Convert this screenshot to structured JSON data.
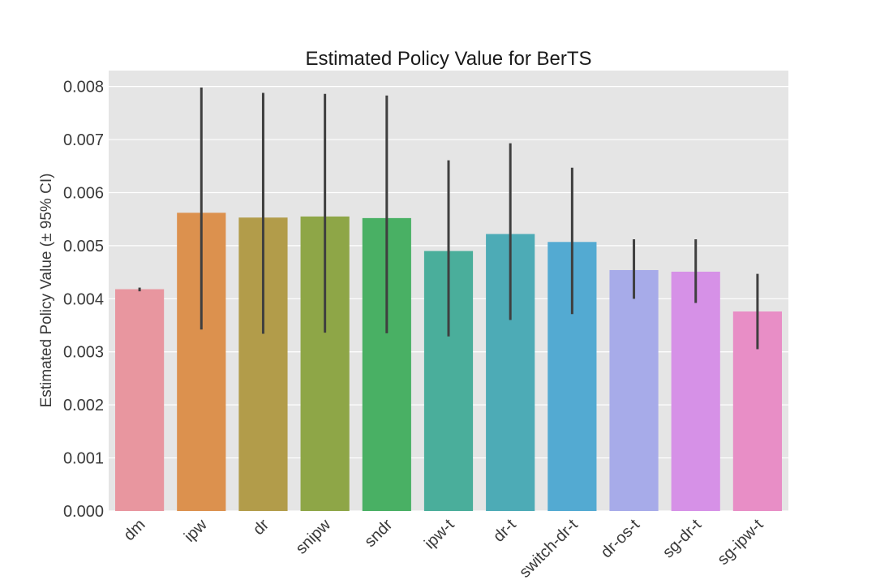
{
  "chart_data": {
    "type": "bar",
    "title": "Estimated Policy Value for BerTS",
    "xlabel": "",
    "ylabel": "Estimated Policy Value (± 95% CI)",
    "ylim": [
      0,
      0.0083
    ],
    "yticks": [
      "0.000",
      "0.001",
      "0.002",
      "0.003",
      "0.004",
      "0.005",
      "0.006",
      "0.007",
      "0.008"
    ],
    "ytick_values": [
      0,
      0.001,
      0.002,
      0.003,
      0.004,
      0.005,
      0.006,
      0.007,
      0.008
    ],
    "grid": true,
    "categories": [
      "dm",
      "ipw",
      "dr",
      "snipw",
      "sndr",
      "ipw-t",
      "dr-t",
      "switch-dr-t",
      "dr-os-t",
      "sg-dr-t",
      "sg-ipw-t"
    ],
    "values": [
      0.00418,
      0.00562,
      0.00553,
      0.00555,
      0.00552,
      0.0049,
      0.00522,
      0.00507,
      0.00454,
      0.00451,
      0.00376
    ],
    "ci_lower": [
      0.00414,
      0.00342,
      0.00334,
      0.00336,
      0.00335,
      0.00329,
      0.0036,
      0.00371,
      0.004,
      0.00392,
      0.00305
    ],
    "ci_upper": [
      0.00421,
      0.00798,
      0.00788,
      0.00786,
      0.00783,
      0.00661,
      0.00693,
      0.00647,
      0.00512,
      0.00512,
      0.00447
    ],
    "colors": [
      "#e8969f",
      "#dc914e",
      "#b29c4a",
      "#8ea647",
      "#49b064",
      "#4aae9b",
      "#4dabb6",
      "#53aad2",
      "#a7abe9",
      "#d691e7",
      "#e88ec6"
    ]
  }
}
